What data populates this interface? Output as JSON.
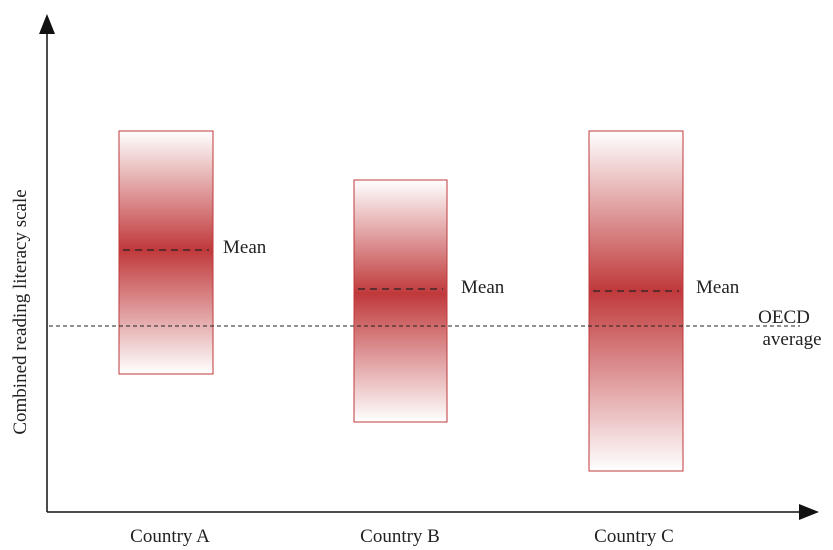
{
  "diagram": {
    "y_axis_title": "Combined reading literacy scale",
    "reference_line": {
      "label_line1": "OECD",
      "label_line2": "average"
    },
    "mean_label": "Mean",
    "countries": [
      {
        "name": "Country A"
      },
      {
        "name": "Country B"
      },
      {
        "name": "Country C"
      }
    ],
    "colors": {
      "bar_core": "#c0393b",
      "bar_edge": "#ffffff",
      "bar_stroke": "#c0393b",
      "axis": "#111111",
      "text": "#222222"
    }
  }
}
